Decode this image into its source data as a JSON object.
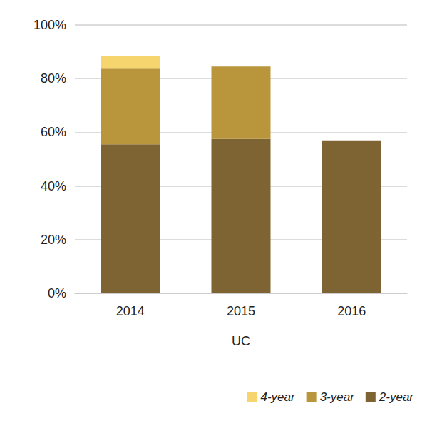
{
  "chart_data": {
    "type": "bar",
    "stacked": true,
    "grid": true,
    "legend": "bottom-right",
    "x_label": "UC",
    "categories": [
      "2014",
      "2015",
      "2016"
    ],
    "series": [
      {
        "name": "2-year",
        "color": "#7f6433",
        "values": [
          55.5,
          57.5,
          57
        ]
      },
      {
        "name": "3-year",
        "color": "#b9953b",
        "values": [
          28.5,
          27,
          null
        ]
      },
      {
        "name": "4-year",
        "color": "#f6d46e",
        "values": [
          4.5,
          null,
          null
        ]
      }
    ],
    "ylim": [
      0,
      100
    ],
    "yticks": [
      {
        "value": 0,
        "label": "0%"
      },
      {
        "value": 20,
        "label": "20%"
      },
      {
        "value": 40,
        "label": "40%"
      },
      {
        "value": 60,
        "label": "60%"
      },
      {
        "value": 80,
        "label": "80%"
      },
      {
        "value": 100,
        "label": "100%"
      }
    ]
  }
}
